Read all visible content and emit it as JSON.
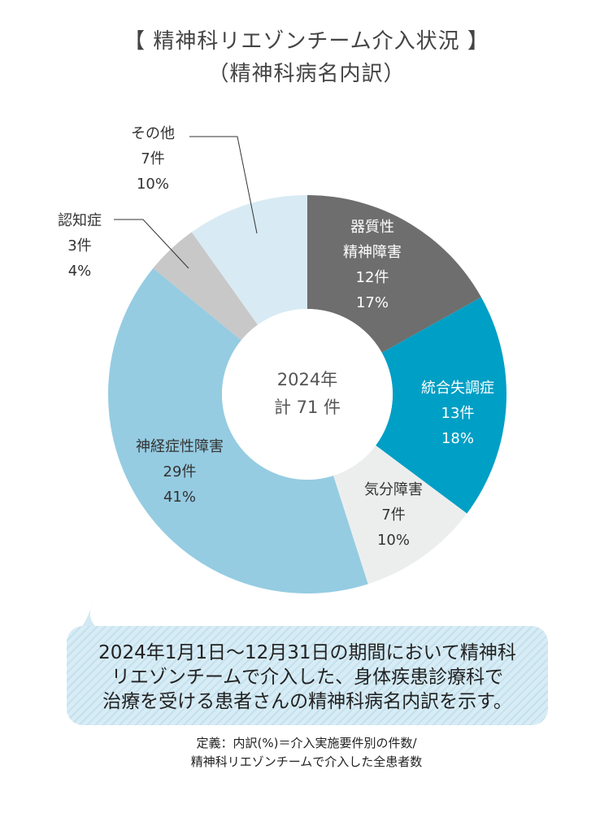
{
  "title": {
    "line1": "【 精神科リエゾンチーム介入状況 】",
    "line2": "（精神科病名内訳）"
  },
  "chart_data": {
    "type": "pie",
    "variant": "donut",
    "center": {
      "line1": "2024年",
      "line2": "計 71 件"
    },
    "total": 71,
    "slices": [
      {
        "name": "器質性精神障害",
        "label_lines": [
          "器質性",
          "精神障害"
        ],
        "count": 12,
        "count_label": "12件",
        "percent_label": "17%",
        "color": "#6e6e6e",
        "text_color": "#ffffff"
      },
      {
        "name": "統合失調症",
        "label_lines": [
          "統合失調症"
        ],
        "count": 13,
        "count_label": "13件",
        "percent_label": "18%",
        "color": "#009fc5",
        "text_color": "#ffffff"
      },
      {
        "name": "気分障害",
        "label_lines": [
          "気分障害"
        ],
        "count": 7,
        "count_label": "7件",
        "percent_label": "10%",
        "color": "#eceeee",
        "text_color": "#333333"
      },
      {
        "name": "神経症性障害",
        "label_lines": [
          "神経症性障害"
        ],
        "count": 29,
        "count_label": "29件",
        "percent_label": "41%",
        "color": "#95cce2",
        "text_color": "#333333"
      },
      {
        "name": "認知症",
        "label_lines": [
          "認知症"
        ],
        "count": 3,
        "count_label": "3件",
        "percent_label": "4%",
        "color": "#c8c8c8",
        "text_color": "#333333"
      },
      {
        "name": "その他",
        "label_lines": [
          "その他"
        ],
        "count": 7,
        "count_label": "7件",
        "percent_label": "10%",
        "color": "#d8eaf3",
        "text_color": "#333333"
      }
    ]
  },
  "note": {
    "lines": [
      "2024年1月1日〜12月31日の期間において精神科",
      "リエゾンチームで介入した、身体疾患診療科で",
      "治療を受ける患者さんの精神科病名内訳を示す。"
    ]
  },
  "definition": {
    "line1": "定義：内訳(%)＝介入実施要件別の件数/",
    "line2": "精神科リエゾンチームで介入した全患者数"
  }
}
